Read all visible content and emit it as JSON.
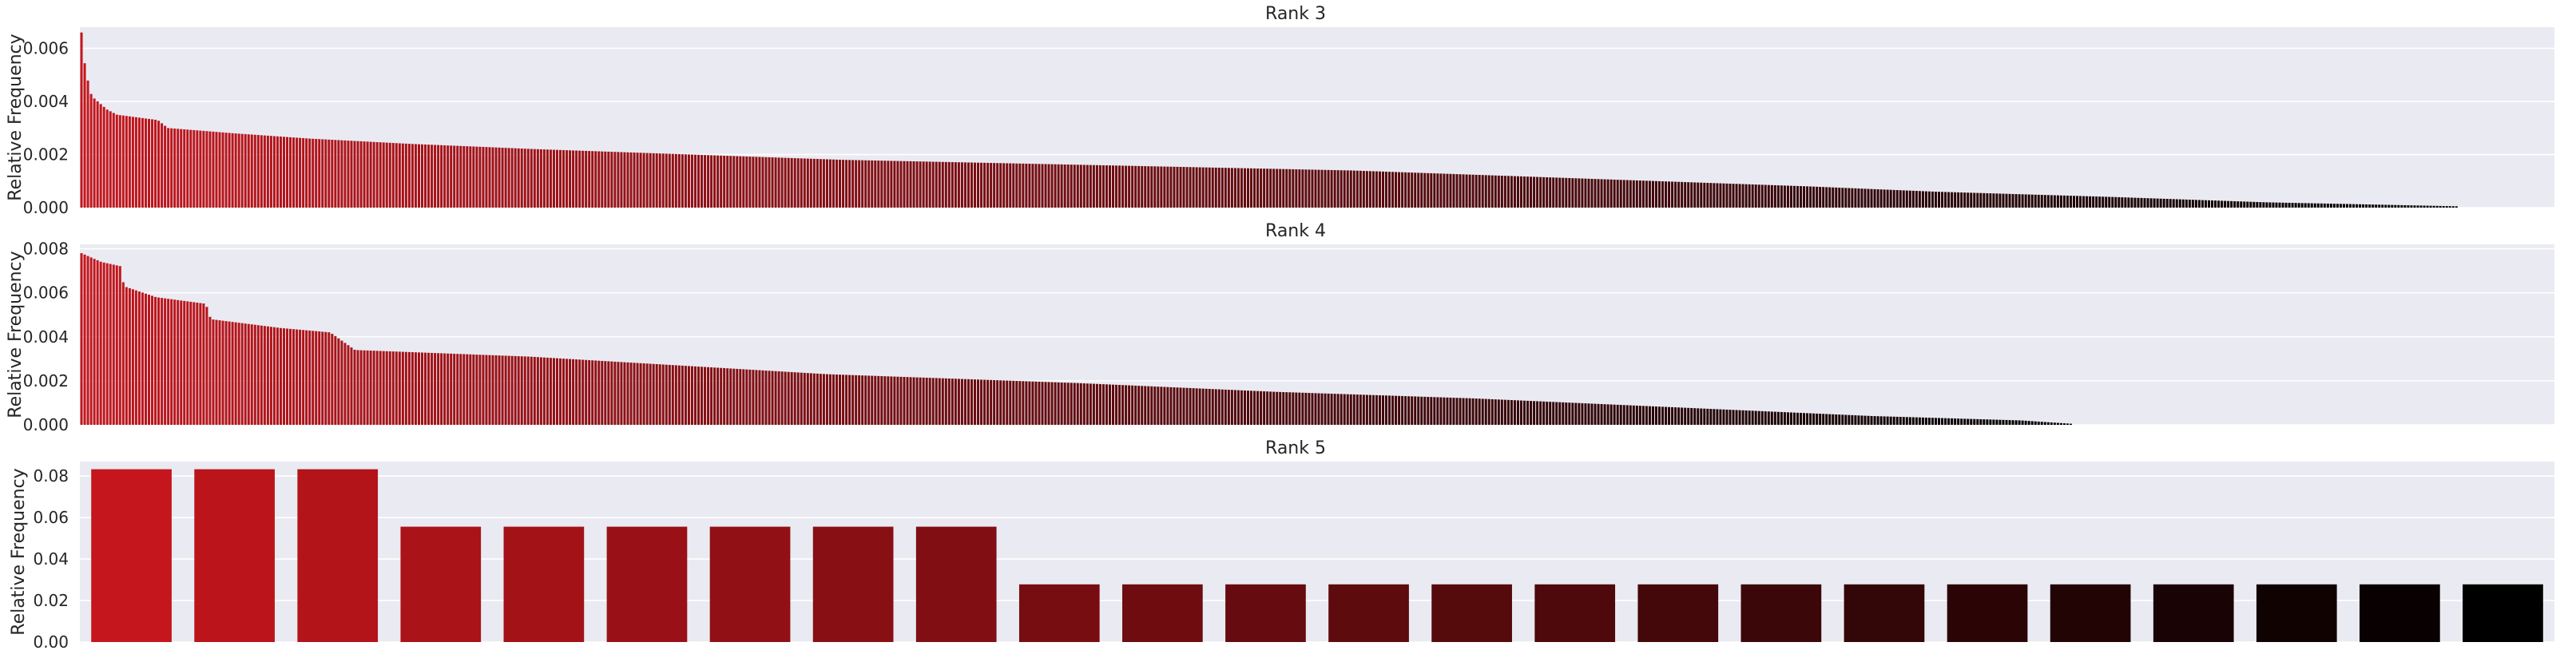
{
  "figure": {
    "background": "#ffffff",
    "axes_background": "#eaeaf2",
    "grid_color": "#ffffff",
    "palette": "red gradient (#c4161c to #000000)"
  },
  "chart_data": [
    {
      "type": "bar",
      "title": "Rank 3",
      "xlabel": "",
      "ylabel": "Relative Frequency",
      "ylim": [
        0,
        0.0068
      ],
      "yticks": [
        "0.000",
        "0.002",
        "0.004",
        "0.006"
      ],
      "ytick_values": [
        0,
        0.002,
        0.004,
        0.006
      ],
      "grid": true,
      "x_ticks_shown": false,
      "bar_count": 740,
      "empty_trailing_slots": 30,
      "profile": [
        [
          0,
          0.0066
        ],
        [
          1,
          0.0056
        ],
        [
          2,
          0.005
        ],
        [
          4,
          0.0042
        ],
        [
          10,
          0.0037
        ],
        [
          14,
          0.0035
        ],
        [
          30,
          0.0033
        ],
        [
          34,
          0.003
        ],
        [
          60,
          0.0028
        ],
        [
          90,
          0.0026
        ],
        [
          130,
          0.0024
        ],
        [
          180,
          0.0022
        ],
        [
          240,
          0.002
        ],
        [
          300,
          0.0018
        ],
        [
          400,
          0.0016
        ],
        [
          500,
          0.0014
        ],
        [
          560,
          0.0012
        ],
        [
          620,
          0.001
        ],
        [
          680,
          0.0008
        ],
        [
          730,
          0.0006
        ],
        [
          800,
          0.0004
        ],
        [
          860,
          0.0002
        ],
        [
          935,
          5e-05
        ]
      ],
      "bar_color_start": "#c4161c",
      "bar_color_end": "#000000"
    },
    {
      "type": "bar",
      "title": "Rank 4",
      "xlabel": "",
      "ylabel": "Relative Frequency",
      "ylim": [
        0,
        0.0082
      ],
      "yticks": [
        "0.000",
        "0.002",
        "0.004",
        "0.006",
        "0.008"
      ],
      "ytick_values": [
        0,
        0.002,
        0.004,
        0.006,
        0.008
      ],
      "grid": true,
      "x_ticks_shown": false,
      "bar_count": 620,
      "empty_trailing_slots": 150,
      "profile": [
        [
          0,
          0.0078
        ],
        [
          8,
          0.0074
        ],
        [
          16,
          0.0072
        ],
        [
          17,
          0.0063
        ],
        [
          30,
          0.0058
        ],
        [
          50,
          0.0055
        ],
        [
          52,
          0.0048
        ],
        [
          80,
          0.0044
        ],
        [
          100,
          0.0042
        ],
        [
          105,
          0.0038
        ],
        [
          110,
          0.0034
        ],
        [
          180,
          0.0031
        ],
        [
          240,
          0.0027
        ],
        [
          300,
          0.0023
        ],
        [
          400,
          0.0019
        ],
        [
          480,
          0.0015
        ],
        [
          560,
          0.0012
        ],
        [
          620,
          0.0009
        ],
        [
          680,
          0.0006
        ],
        [
          720,
          0.0004
        ],
        [
          780,
          0.0002
        ],
        [
          800,
          5e-05
        ]
      ],
      "bar_color_start": "#c4161c",
      "bar_color_end": "#000000"
    },
    {
      "type": "bar",
      "title": "Rank 5",
      "xlabel": "",
      "ylabel": "Relative Frequency",
      "ylim": [
        0,
        0.087
      ],
      "yticks": [
        "0.00",
        "0.02",
        "0.04",
        "0.06",
        "0.08"
      ],
      "ytick_values": [
        0,
        0.02,
        0.04,
        0.06,
        0.08
      ],
      "grid": true,
      "x_ticks_shown": false,
      "values": [
        0.0833,
        0.0833,
        0.0833,
        0.0556,
        0.0556,
        0.0556,
        0.0556,
        0.0556,
        0.0556,
        0.0278,
        0.0278,
        0.0278,
        0.0278,
        0.0278,
        0.0278,
        0.0278,
        0.0278,
        0.0278,
        0.0278,
        0.0278,
        0.0278,
        0.0278,
        0.0278,
        0.0278
      ],
      "bar_color_start": "#c4161c",
      "bar_color_end": "#000000"
    }
  ]
}
